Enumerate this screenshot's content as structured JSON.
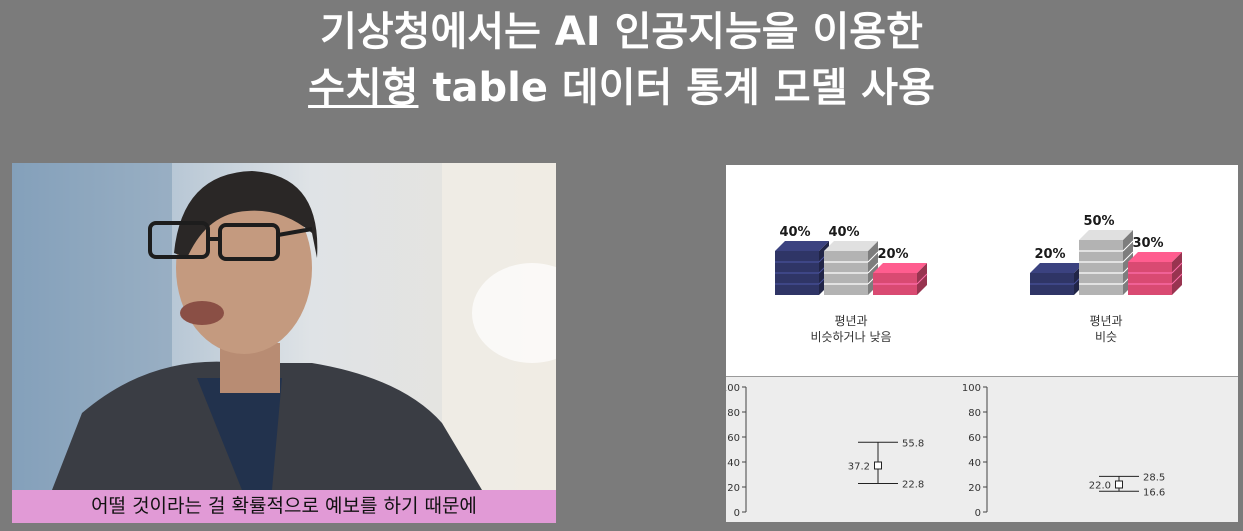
{
  "headline": {
    "line1": "기상청에서는 AI 인공지능을 이용한",
    "line2_underlined": "수치형",
    "line2_rest": " table 데이터 통계 모델 사용"
  },
  "video": {
    "subtitle": "어떨 것이라는 걸 확률적으로 예보를 하기 때문에"
  },
  "forecast_groups": [
    {
      "caption_line1": "평년과",
      "caption_line2": "비슷하거나 낮음",
      "stacks": [
        {
          "label": "40%",
          "value": 40,
          "color": "#2f3566"
        },
        {
          "label": "40%",
          "value": 40,
          "color": "#b3b3b3"
        },
        {
          "label": "20%",
          "value": 20,
          "color": "#d94a72"
        }
      ]
    },
    {
      "caption_line1": "평년과",
      "caption_line2": "비슷",
      "stacks": [
        {
          "label": "20%",
          "value": 20,
          "color": "#2f3566"
        },
        {
          "label": "50%",
          "value": 50,
          "color": "#b3b3b3"
        },
        {
          "label": "30%",
          "value": 30,
          "color": "#d94a72"
        }
      ]
    }
  ],
  "range_charts": [
    {
      "y_ticks": [
        "100",
        "80",
        "60",
        "40",
        "20",
        "0"
      ],
      "ylim": [
        0,
        100
      ],
      "center": 37.2,
      "upper": 55.8,
      "lower": 22.8,
      "center_label": "37.2",
      "upper_label": "55.8",
      "lower_label": "22.8"
    },
    {
      "y_ticks": [
        "100",
        "80",
        "60",
        "40",
        "20",
        "0"
      ],
      "ylim": [
        0,
        100
      ],
      "center": 22.0,
      "upper": 28.5,
      "lower": 16.6,
      "center_label": "22.0",
      "upper_label": "28.5",
      "lower_label": "16.6"
    }
  ]
}
